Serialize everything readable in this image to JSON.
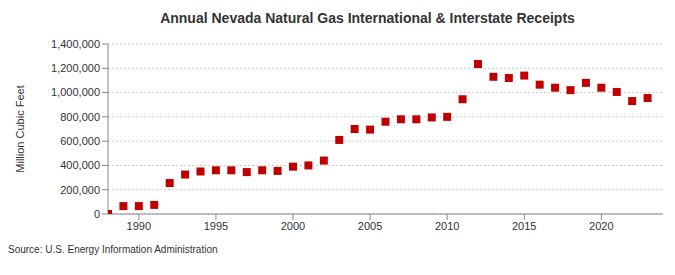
{
  "chart_data": {
    "type": "scatter",
    "title": "Annual Nevada Natural Gas International & Interstate Receipts",
    "y_label": "Million Cubic Feet",
    "source": "Source: U.S. Energy Information Administration",
    "x": [
      1988,
      1989,
      1990,
      1991,
      1992,
      1993,
      1994,
      1995,
      1996,
      1997,
      1998,
      1999,
      2000,
      2001,
      2002,
      2003,
      2004,
      2005,
      2006,
      2007,
      2008,
      2009,
      2010,
      2011,
      2012,
      2013,
      2014,
      2015,
      2016,
      2017,
      2018,
      2019,
      2020,
      2021,
      2022,
      2023
    ],
    "values": [
      0,
      65000,
      65000,
      75000,
      255000,
      325000,
      350000,
      360000,
      360000,
      345000,
      360000,
      355000,
      390000,
      400000,
      440000,
      610000,
      700000,
      695000,
      760000,
      780000,
      780000,
      795000,
      800000,
      945000,
      1235000,
      1130000,
      1120000,
      1140000,
      1065000,
      1040000,
      1020000,
      1080000,
      1040000,
      1005000,
      930000,
      955000
    ],
    "color": "#c00000",
    "marker": "square",
    "xlim": [
      1988,
      2024
    ],
    "xticks": [
      1990,
      1995,
      2000,
      2005,
      2010,
      2015,
      2020
    ],
    "ylim": [
      0,
      1400000
    ],
    "yticks": [
      0,
      {
        "value": 200000,
        "label": "200,000"
      },
      {
        "value": 400000,
        "label": "400,000"
      },
      {
        "value": 600000,
        "label": "600,000"
      },
      {
        "value": 800000,
        "label": "800,000"
      },
      {
        "value": 1000000,
        "label": "1,000,000"
      },
      {
        "value": 1200000,
        "label": "1,200,000"
      },
      {
        "value": 1400000,
        "label": "1,400,000"
      }
    ],
    "grid": true
  }
}
